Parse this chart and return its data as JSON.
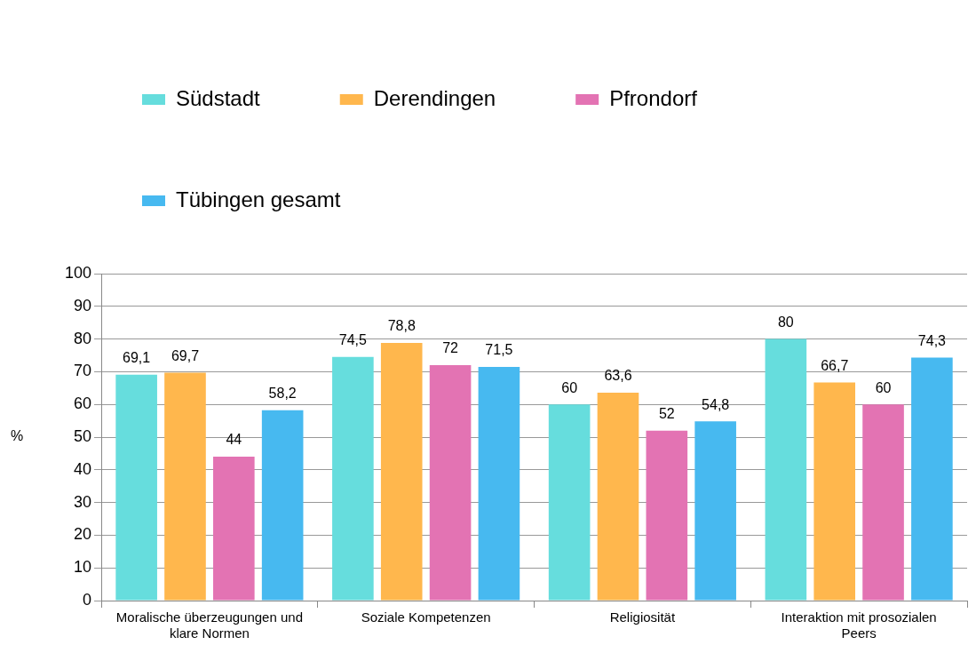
{
  "chart_data": {
    "type": "bar",
    "ylabel": "%",
    "categories": [
      "Moralische überzeugungen und klare Normen",
      "Soziale Kompetenzen",
      "Religiosität",
      "Interaktion mit prosozialen Peers"
    ],
    "series": [
      {
        "name": "Südstadt",
        "color": "#66dddd",
        "values": [
          69.1,
          74.5,
          60,
          80
        ],
        "value_labels": [
          "69,1",
          "74,5",
          "60",
          "80"
        ]
      },
      {
        "name": "Derendingen",
        "color": "#ffb74d",
        "values": [
          69.7,
          78.8,
          63.6,
          66.7
        ],
        "value_labels": [
          "69,7",
          "78,8",
          "63,6",
          "66,7"
        ]
      },
      {
        "name": "Pfrondorf",
        "color": "#e373b3",
        "values": [
          44,
          72,
          52,
          60
        ],
        "value_labels": [
          "44",
          "72",
          "52",
          "60"
        ]
      },
      {
        "name": "Tübingen gesamt",
        "color": "#47b9f0",
        "values": [
          58.2,
          71.5,
          54.8,
          74.3
        ],
        "value_labels": [
          "58,2",
          "71,5",
          "54,8",
          "74,3"
        ]
      }
    ],
    "ylim": [
      0,
      100
    ],
    "yticks": [
      0,
      10,
      20,
      30,
      40,
      50,
      60,
      70,
      80,
      90,
      100
    ],
    "grid": "y",
    "legend": "top left"
  }
}
